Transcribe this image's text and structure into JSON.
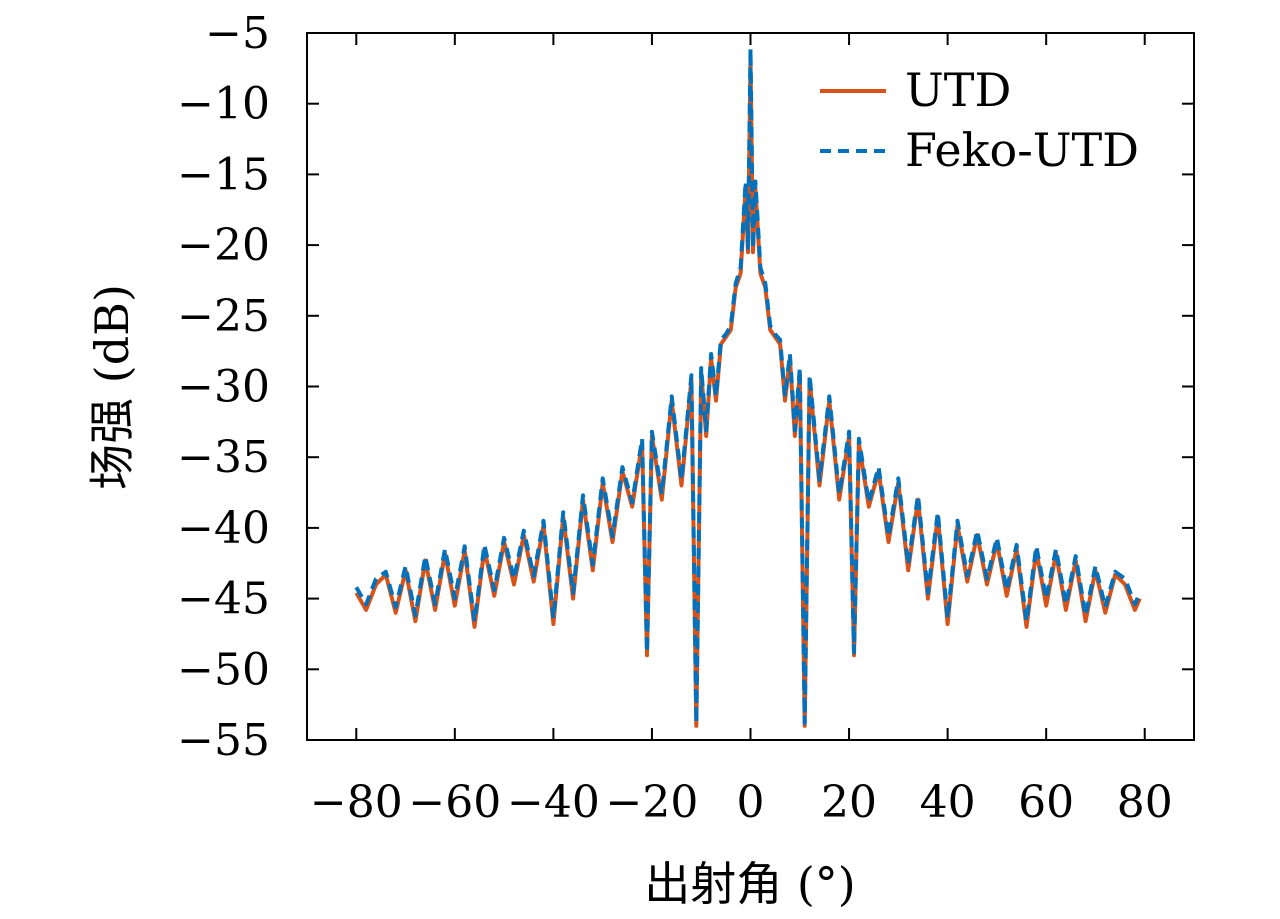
{
  "chart_data": {
    "type": "line",
    "title": "",
    "xlabel": "出射角 (°)",
    "ylabel": "场强 (dB)",
    "xlim": [
      -90,
      90
    ],
    "ylim": [
      -55,
      -5
    ],
    "xticks": [
      -80,
      -60,
      -40,
      -20,
      0,
      20,
      40,
      60,
      80
    ],
    "yticks": [
      -5,
      -10,
      -15,
      -20,
      -25,
      -30,
      -35,
      -40,
      -45,
      -50,
      -55
    ],
    "xtick_labels": [
      "−80",
      "−60",
      "−40",
      "−20",
      "0",
      "20",
      "40",
      "60",
      "80"
    ],
    "ytick_labels": [
      "−5",
      "−10",
      "−15",
      "−20",
      "−25",
      "−30",
      "−35",
      "−40",
      "−45",
      "−50",
      "−55"
    ],
    "grid": false,
    "legend_position": "top-right",
    "series": [
      {
        "name": "UTD",
        "color": "#D95319",
        "style": "solid",
        "x": [
          -80,
          -78,
          -76,
          -74,
          -72,
          -70,
          -68,
          -66,
          -64,
          -62,
          -60,
          -58,
          -56,
          -54,
          -52,
          -50,
          -48,
          -46,
          -44,
          -42,
          -40,
          -38,
          -36,
          -34,
          -32,
          -30,
          -28,
          -26,
          -24,
          -22,
          -21,
          -20,
          -18,
          -16,
          -14,
          -12,
          -11,
          -10,
          -9,
          -8,
          -7,
          -6,
          -5,
          -4,
          -3,
          -2,
          -1,
          -0.5,
          0,
          0.5,
          1,
          2,
          3,
          4,
          5,
          6,
          7,
          8,
          9,
          10,
          11,
          12,
          14,
          16,
          18,
          20,
          21,
          22,
          24,
          26,
          28,
          30,
          32,
          34,
          36,
          38,
          40,
          42,
          44,
          46,
          48,
          50,
          52,
          54,
          56,
          58,
          60,
          62,
          64,
          66,
          68,
          70,
          72,
          74,
          76,
          78,
          79
        ],
        "y": [
          -44.6,
          -45.8,
          -44.0,
          -43.3,
          -46.0,
          -43.0,
          -46.6,
          -42.3,
          -45.8,
          -41.8,
          -45.5,
          -41.6,
          -47.0,
          -41.5,
          -44.8,
          -41.0,
          -44.0,
          -40.5,
          -43.8,
          -39.8,
          -46.8,
          -39.2,
          -45.0,
          -38.0,
          -43.0,
          -36.8,
          -41.0,
          -36.0,
          -38.5,
          -34.0,
          -49.0,
          -33.5,
          -38.0,
          -31.0,
          -37.0,
          -29.5,
          -54.0,
          -29.0,
          -33.5,
          -28.0,
          -31.0,
          -27.0,
          -26.5,
          -26.0,
          -23.0,
          -22.0,
          -16.0,
          -20.5,
          -6.8,
          -20.5,
          -16.0,
          -22.0,
          -23.0,
          -26.0,
          -26.5,
          -27.0,
          -31.0,
          -28.0,
          -33.5,
          -29.0,
          -54.0,
          -29.5,
          -37.0,
          -31.0,
          -38.0,
          -33.5,
          -49.0,
          -34.0,
          -38.5,
          -36.0,
          -41.0,
          -36.8,
          -43.0,
          -38.0,
          -45.0,
          -39.2,
          -46.8,
          -39.8,
          -43.8,
          -40.5,
          -44.0,
          -41.0,
          -44.8,
          -41.5,
          -47.0,
          -41.6,
          -45.5,
          -41.8,
          -45.8,
          -42.3,
          -46.6,
          -43.0,
          -46.0,
          -43.3,
          -44.0,
          -45.8,
          -45.0
        ]
      },
      {
        "name": "Feko-UTD",
        "color": "#0072BD",
        "style": "dashed",
        "x": [
          -80,
          -78,
          -76,
          -74,
          -72,
          -70,
          -68,
          -66,
          -64,
          -62,
          -60,
          -58,
          -56,
          -54,
          -52,
          -50,
          -48,
          -46,
          -44,
          -42,
          -40,
          -38,
          -36,
          -34,
          -32,
          -30,
          -28,
          -26,
          -24,
          -22,
          -21,
          -20,
          -18,
          -16,
          -14,
          -12,
          -11,
          -10,
          -9,
          -8,
          -7,
          -6,
          -5,
          -4,
          -3,
          -2,
          -1,
          -0.5,
          0,
          0.5,
          1,
          2,
          3,
          4,
          5,
          6,
          7,
          8,
          9,
          10,
          11,
          12,
          14,
          16,
          18,
          20,
          21,
          22,
          24,
          26,
          28,
          30,
          32,
          34,
          36,
          38,
          40,
          42,
          44,
          46,
          48,
          50,
          52,
          54,
          56,
          58,
          60,
          62,
          64,
          66,
          68,
          70,
          72,
          74,
          76,
          78,
          79
        ],
        "y": [
          -44.2,
          -45.4,
          -43.6,
          -43.1,
          -45.6,
          -42.7,
          -46.2,
          -42.0,
          -45.4,
          -41.5,
          -45.0,
          -41.3,
          -46.6,
          -41.2,
          -44.4,
          -40.7,
          -43.6,
          -40.2,
          -43.4,
          -39.5,
          -46.4,
          -38.9,
          -44.6,
          -37.7,
          -42.6,
          -36.5,
          -40.6,
          -35.7,
          -38.2,
          -33.7,
          -48.8,
          -33.2,
          -37.6,
          -30.7,
          -36.6,
          -29.2,
          -53.8,
          -28.7,
          -33.1,
          -27.7,
          -30.7,
          -26.7,
          -26.3,
          -25.7,
          -22.7,
          -21.6,
          -15.5,
          -20.2,
          -6.1,
          -20.2,
          -15.5,
          -21.6,
          -22.7,
          -25.7,
          -26.3,
          -26.7,
          -30.7,
          -27.7,
          -33.1,
          -28.7,
          -53.8,
          -29.2,
          -36.6,
          -30.7,
          -37.6,
          -33.2,
          -48.8,
          -33.7,
          -38.2,
          -35.7,
          -40.6,
          -36.5,
          -42.6,
          -37.7,
          -44.6,
          -38.9,
          -46.4,
          -39.5,
          -43.4,
          -40.2,
          -43.6,
          -40.7,
          -44.4,
          -41.2,
          -46.6,
          -41.3,
          -45.0,
          -41.5,
          -45.4,
          -42.0,
          -46.2,
          -42.7,
          -45.6,
          -43.1,
          -43.6,
          -45.4,
          -44.6
        ]
      }
    ]
  }
}
